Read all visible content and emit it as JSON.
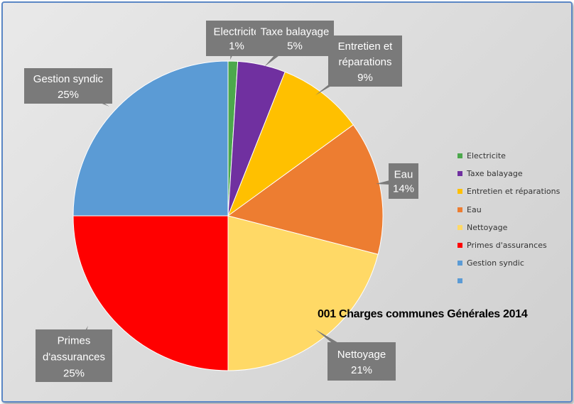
{
  "chart_data": {
    "type": "pie",
    "title": "001 Charges communes Générales 2014",
    "categories": [
      "Electricite",
      "Taxe balayage",
      "Entretien et réparations",
      "Eau",
      "Nettoyage",
      "Primes d'assurances",
      "Gestion syndic"
    ],
    "values": [
      1,
      5,
      9,
      14,
      21,
      25,
      25
    ],
    "unit": "%",
    "colors": [
      "#4ca84c",
      "#7030a0",
      "#ffc000",
      "#ed7d31",
      "#ffd966",
      "#ff0000",
      "#5b9bd5"
    ],
    "data_labels": [
      {
        "lines": [
          "Electricite",
          "1%"
        ]
      },
      {
        "lines": [
          "Taxe balayage",
          "5%"
        ]
      },
      {
        "lines": [
          "Entretien et",
          "réparations",
          "9%"
        ]
      },
      {
        "lines": [
          "Eau",
          "14%"
        ]
      },
      {
        "lines": [
          "Nettoyage",
          "21%"
        ]
      },
      {
        "lines": [
          "Primes",
          "d'assurances",
          "25%"
        ]
      },
      {
        "lines": [
          "Gestion syndic",
          "25%"
        ]
      }
    ],
    "legend": {
      "position": "right",
      "entries": [
        {
          "label": "Electricite",
          "color": "#4ca84c"
        },
        {
          "label": "Taxe balayage",
          "color": "#7030a0"
        },
        {
          "label": "Entretien et réparations",
          "color": "#ffc000"
        },
        {
          "label": "Eau",
          "color": "#ed7d31"
        },
        {
          "label": "Nettoyage",
          "color": "#ffd966"
        },
        {
          "label": "Primes d'assurances",
          "color": "#ff0000"
        },
        {
          "label": "Gestion syndic",
          "color": "#5b9bd5"
        },
        {
          "label": "",
          "color": "#5b9bd5"
        }
      ]
    }
  }
}
